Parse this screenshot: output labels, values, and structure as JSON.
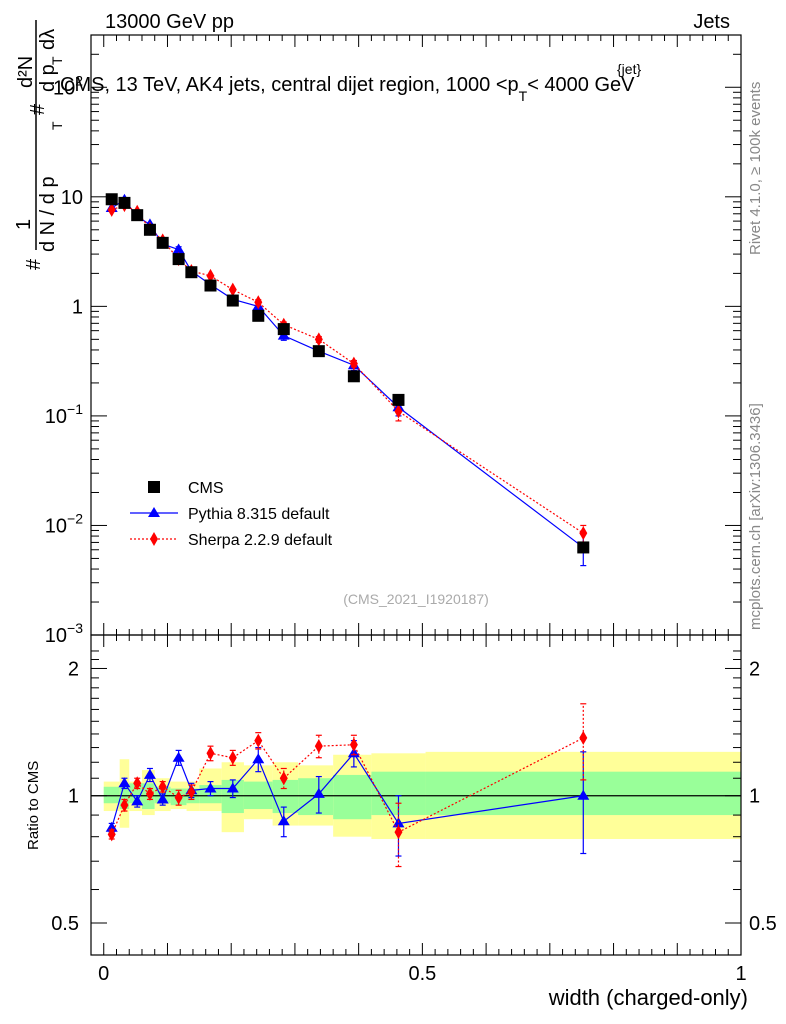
{
  "header": {
    "left": "13000 GeV pp",
    "right": "Jets"
  },
  "side_labels": {
    "rivet": "Rivet 4.1.0, ≥ 100k events",
    "mcplots": "mcplots.cern.ch [arXiv:1306.3436]"
  },
  "colors": {
    "cms": "#000000",
    "pythia": "#0000ff",
    "sherpa": "#ff0000",
    "band_inner": "#99ff99",
    "band_outer": "#ffff99"
  },
  "chart_data": [
    {
      "type": "scatter",
      "panel": "main",
      "title": "CMS, 13 TeV, AK4 jets, central dijet region, 1000 <p",
      "title_sub": "T",
      "title_sup": "{jet}",
      "title_end": "< 4000 GeV",
      "ylabel_parts": [
        "#",
        "1",
        "d N / d p",
        "T",
        "#",
        "d²N",
        "d p",
        "T",
        "dλ"
      ],
      "yscale": "log",
      "ylim": [
        0.001,
        300
      ],
      "xlim": [
        -0.02,
        1.0
      ],
      "yticks": [
        {
          "value": 0.001,
          "label": "10",
          "exp": "−3"
        },
        {
          "value": 0.01,
          "label": "10",
          "exp": "−2"
        },
        {
          "value": 0.1,
          "label": "10",
          "exp": "−1"
        },
        {
          "value": 1,
          "label": "1",
          "exp": ""
        },
        {
          "value": 10,
          "label": "10",
          "exp": ""
        },
        {
          "value": 100,
          "label": "10",
          "exp": "2"
        }
      ],
      "watermark": "(CMS_2021_I1920187)",
      "legend_position": "bottom-left",
      "series": [
        {
          "name": "CMS",
          "marker": "square",
          "x": [
            0.0125,
            0.0325,
            0.0525,
            0.0725,
            0.0925,
            0.1175,
            0.1375,
            0.1675,
            0.2025,
            0.2425,
            0.2825,
            0.3375,
            0.3925,
            0.4625,
            0.7525
          ],
          "y": [
            9.5,
            8.8,
            6.8,
            5.0,
            3.8,
            2.7,
            2.05,
            1.55,
            1.13,
            0.82,
            0.62,
            0.39,
            0.23,
            0.14,
            0.0063
          ]
        },
        {
          "name": "Pythia 8.315 default",
          "marker": "triangle",
          "line": "solid",
          "x": [
            0.0125,
            0.0325,
            0.0525,
            0.0725,
            0.0925,
            0.1175,
            0.1375,
            0.1675,
            0.2025,
            0.2425,
            0.2825,
            0.3375,
            0.3925,
            0.4625,
            0.7525
          ],
          "y": [
            7.9,
            9.4,
            6.6,
            5.6,
            3.7,
            3.3,
            2.1,
            1.58,
            1.16,
            1.0,
            0.54,
            0.39,
            0.29,
            0.12,
            0.0063
          ],
          "yerr": [
            0,
            0,
            0,
            0,
            0,
            0.2,
            0,
            0,
            0,
            0.08,
            0.05,
            0.04,
            0.03,
            0.02,
            0.002
          ]
        },
        {
          "name": "Sherpa 2.2.9 default",
          "marker": "diamond",
          "line": "dotted",
          "x": [
            0.0125,
            0.0325,
            0.0525,
            0.0725,
            0.0925,
            0.1175,
            0.1375,
            0.1675,
            0.2025,
            0.2425,
            0.2825,
            0.3375,
            0.3925,
            0.4625,
            0.7525
          ],
          "y": [
            7.6,
            8.4,
            7.3,
            5.1,
            4.0,
            2.7,
            2.1,
            1.9,
            1.42,
            1.09,
            0.68,
            0.5,
            0.3,
            0.11,
            0.0085
          ],
          "yerr": [
            0,
            0,
            0,
            0,
            0,
            0,
            0,
            0,
            0,
            0.06,
            0.04,
            0.03,
            0.02,
            0.02,
            0.0015
          ]
        }
      ]
    },
    {
      "type": "scatter",
      "panel": "ratio",
      "ylabel": "Ratio to CMS",
      "yscale": "log",
      "ylim": [
        0.42,
        2.4
      ],
      "xlim": [
        -0.02,
        1.0
      ],
      "yticks": [
        {
          "value": 0.5,
          "label": "0.5"
        },
        {
          "value": 1,
          "label": "1"
        },
        {
          "value": 2,
          "label": "2"
        }
      ],
      "xticks": [
        {
          "value": 0,
          "label": "0"
        },
        {
          "value": 0.5,
          "label": "0.5"
        },
        {
          "value": 1,
          "label": "1"
        }
      ],
      "xlabel": "width (charged-only)",
      "bins": [
        0,
        0.025,
        0.04,
        0.06,
        0.08,
        0.105,
        0.13,
        0.15,
        0.185,
        0.22,
        0.265,
        0.305,
        0.36,
        0.42,
        0.505,
        1.0
      ],
      "band_inner": [
        [
          0.96,
          1.05
        ],
        [
          0.93,
          1.06
        ],
        [
          0.96,
          1.07
        ],
        [
          0.93,
          1.07
        ],
        [
          0.96,
          1.05
        ],
        [
          0.95,
          1.04
        ],
        [
          0.96,
          1.04
        ],
        [
          0.96,
          1.06
        ],
        [
          0.91,
          1.09
        ],
        [
          0.93,
          1.08
        ],
        [
          0.91,
          1.09
        ],
        [
          0.9,
          1.1
        ],
        [
          0.88,
          1.12
        ],
        [
          0.9,
          1.14
        ],
        [
          0.9,
          1.14
        ]
      ],
      "band_outer": [
        [
          0.92,
          1.08
        ],
        [
          0.84,
          1.22
        ],
        [
          0.92,
          1.08
        ],
        [
          0.9,
          1.15
        ],
        [
          0.92,
          1.1
        ],
        [
          0.93,
          1.08
        ],
        [
          0.92,
          1.08
        ],
        [
          0.92,
          1.16
        ],
        [
          0.82,
          1.2
        ],
        [
          0.88,
          1.18
        ],
        [
          0.85,
          1.2
        ],
        [
          0.85,
          1.18
        ],
        [
          0.8,
          1.25
        ],
        [
          0.79,
          1.26
        ],
        [
          0.79,
          1.27
        ]
      ],
      "series": [
        {
          "name": "Pythia 8.315 default",
          "marker": "triangle",
          "line": "solid",
          "x": [
            0.0125,
            0.0325,
            0.0525,
            0.0725,
            0.0925,
            0.1175,
            0.1375,
            0.1675,
            0.2025,
            0.2425,
            0.2825,
            0.3375,
            0.3925,
            0.4625,
            0.7525
          ],
          "y": [
            0.84,
            1.07,
            0.97,
            1.12,
            0.98,
            1.23,
            1.03,
            1.04,
            1.04,
            1.22,
            0.87,
            1.01,
            1.26,
            0.86,
            1.0
          ],
          "yerr": [
            0.02,
            0.03,
            0.03,
            0.04,
            0.03,
            0.05,
            0.04,
            0.04,
            0.05,
            0.08,
            0.07,
            0.1,
            0.09,
            0.14,
            0.27
          ]
        },
        {
          "name": "Sherpa 2.2.9 default",
          "marker": "diamond",
          "line": "dotted",
          "x": [
            0.0125,
            0.0325,
            0.0525,
            0.0725,
            0.0925,
            0.1175,
            0.1375,
            0.1675,
            0.2025,
            0.2425,
            0.2825,
            0.3375,
            0.3925,
            0.4625,
            0.7525
          ],
          "y": [
            0.81,
            0.95,
            1.07,
            1.01,
            1.05,
            0.99,
            1.02,
            1.26,
            1.23,
            1.35,
            1.1,
            1.31,
            1.32,
            0.82,
            1.37
          ],
          "yerr": [
            0.02,
            0.03,
            0.03,
            0.03,
            0.03,
            0.04,
            0.04,
            0.05,
            0.05,
            0.06,
            0.06,
            0.08,
            0.07,
            0.14,
            0.28
          ]
        }
      ]
    }
  ]
}
